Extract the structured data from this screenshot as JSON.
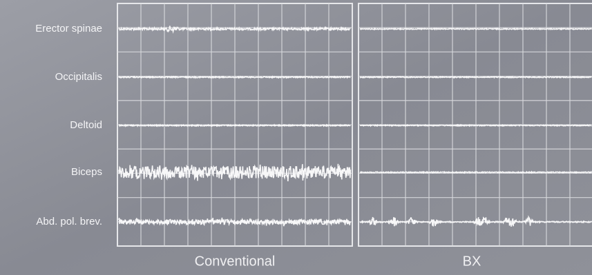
{
  "rows": [
    "Erector spinae",
    "Occipitalis",
    "Deltoid",
    "Biceps",
    "Abd. pol. brev."
  ],
  "panels": [
    "Conventional",
    "BX"
  ]
}
